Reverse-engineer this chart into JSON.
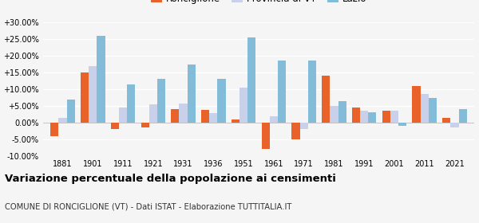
{
  "years": [
    1881,
    1901,
    1911,
    1921,
    1931,
    1936,
    1951,
    1961,
    1971,
    1981,
    1991,
    2001,
    2011,
    2021
  ],
  "ronciglione": [
    -4.0,
    15.0,
    -2.0,
    -1.5,
    4.0,
    3.8,
    1.0,
    -7.8,
    -5.0,
    14.0,
    4.5,
    3.5,
    11.0,
    1.5
  ],
  "provincia_vt": [
    1.5,
    17.0,
    4.5,
    5.5,
    5.8,
    2.8,
    10.5,
    2.0,
    -2.0,
    5.0,
    3.5,
    3.5,
    8.5,
    -1.5
  ],
  "lazio": [
    7.0,
    26.0,
    11.5,
    13.0,
    17.5,
    13.0,
    25.5,
    18.5,
    18.5,
    6.5,
    3.0,
    -1.0,
    7.5,
    4.0
  ],
  "color_ronciglione": "#e8622a",
  "color_provincia": "#c9d0ea",
  "color_lazio": "#82bcd8",
  "title": "Variazione percentuale della popolazione ai censimenti",
  "subtitle": "COMUNE DI RONCIGLIONE (VT) - Dati ISTAT - Elaborazione TUTTITALIA.IT",
  "ylim": [
    -10.0,
    30.0
  ],
  "yticks": [
    -10.0,
    -5.0,
    0.0,
    5.0,
    10.0,
    15.0,
    20.0,
    25.0,
    30.0
  ],
  "legend_labels": [
    "Ronciglione",
    "Provincia di VT",
    "Lazio"
  ],
  "bg_color": "#f5f5f5",
  "bar_width": 0.27
}
